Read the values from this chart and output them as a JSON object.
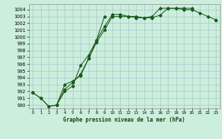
{
  "xlabel": "Graphe pression niveau de la mer (hPa)",
  "bg_color": "#cceedd",
  "grid_color": "#aacccc",
  "line_color": "#1a5c1a",
  "ylim": [
    989.5,
    1004.8
  ],
  "xlim": [
    -0.5,
    23.5
  ],
  "yticks": [
    990,
    991,
    992,
    993,
    994,
    995,
    996,
    997,
    998,
    999,
    1000,
    1001,
    1002,
    1003,
    1004
  ],
  "xticks": [
    0,
    1,
    2,
    3,
    4,
    5,
    6,
    7,
    8,
    9,
    10,
    11,
    12,
    13,
    14,
    15,
    16,
    17,
    18,
    19,
    20,
    21,
    22,
    23
  ],
  "series1_y": [
    991.8,
    991.0,
    989.8,
    990.0,
    993.0,
    993.5,
    994.3,
    996.8,
    999.2,
    1001.0,
    1003.0,
    1003.0,
    1003.0,
    1002.8,
    1002.8,
    1002.8,
    1003.2,
    1004.2,
    1004.2,
    1004.0,
    1004.0,
    1003.5,
    1003.0,
    1002.5
  ],
  "series2_y": [
    991.8,
    991.0,
    989.8,
    990.0,
    992.0,
    992.8,
    995.8,
    997.3,
    999.5,
    1003.0,
    null,
    null,
    null,
    null,
    null,
    null,
    null,
    null,
    null,
    null,
    null,
    null,
    null,
    null
  ],
  "series3_y": [
    991.8,
    null,
    null,
    990.0,
    992.3,
    993.3,
    994.5,
    996.8,
    999.5,
    1001.5,
    1003.3,
    1003.3,
    1003.0,
    1003.0,
    1002.8,
    1003.0,
    1004.2,
    1004.2,
    1004.2,
    1004.2,
    1004.2,
    null,
    null,
    1002.5
  ]
}
